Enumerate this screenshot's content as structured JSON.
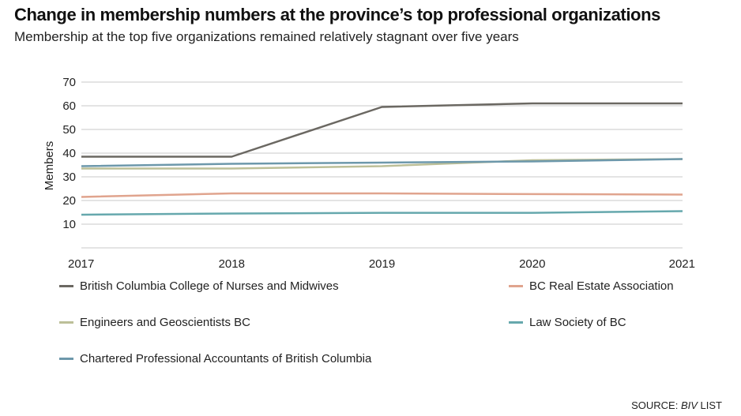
{
  "title": "Change in membership numbers at the province’s top professional organizations",
  "subtitle": "Membership at the top five organizations remained relatively stagnant over five years",
  "source": {
    "prefix": "SOURCE: ",
    "italic": "BIV",
    "suffix": " LIST"
  },
  "chart_data": {
    "type": "line",
    "x": [
      "2017",
      "2018",
      "2019",
      "2020",
      "2021"
    ],
    "ylabel": "Members",
    "xlabel": "",
    "ylim": [
      0,
      70
    ],
    "yticks": [
      10,
      20,
      30,
      40,
      50,
      60,
      70
    ],
    "grid": true,
    "legend_position": "bottom",
    "series": [
      {
        "name": "British Columbia College of Nurses and Midwives",
        "color": "#6b6862",
        "values": [
          38.5,
          38.5,
          59.5,
          61,
          61
        ]
      },
      {
        "name": "BC Real Estate Association",
        "color": "#e0a48e",
        "values": [
          21.5,
          23,
          23,
          22.7,
          22.5
        ]
      },
      {
        "name": "Engineers and Geoscientists BC",
        "color": "#bcbf98",
        "values": [
          33.5,
          33.5,
          34.5,
          37,
          37.5
        ]
      },
      {
        "name": "Law Society of BC",
        "color": "#66a8ad",
        "values": [
          14,
          14.5,
          14.8,
          14.8,
          15.5
        ]
      },
      {
        "name": "Chartered Professional Accountants of British Columbia",
        "color": "#6d98ab",
        "values": [
          34.5,
          35.5,
          36,
          36.5,
          37.5
        ]
      }
    ]
  }
}
